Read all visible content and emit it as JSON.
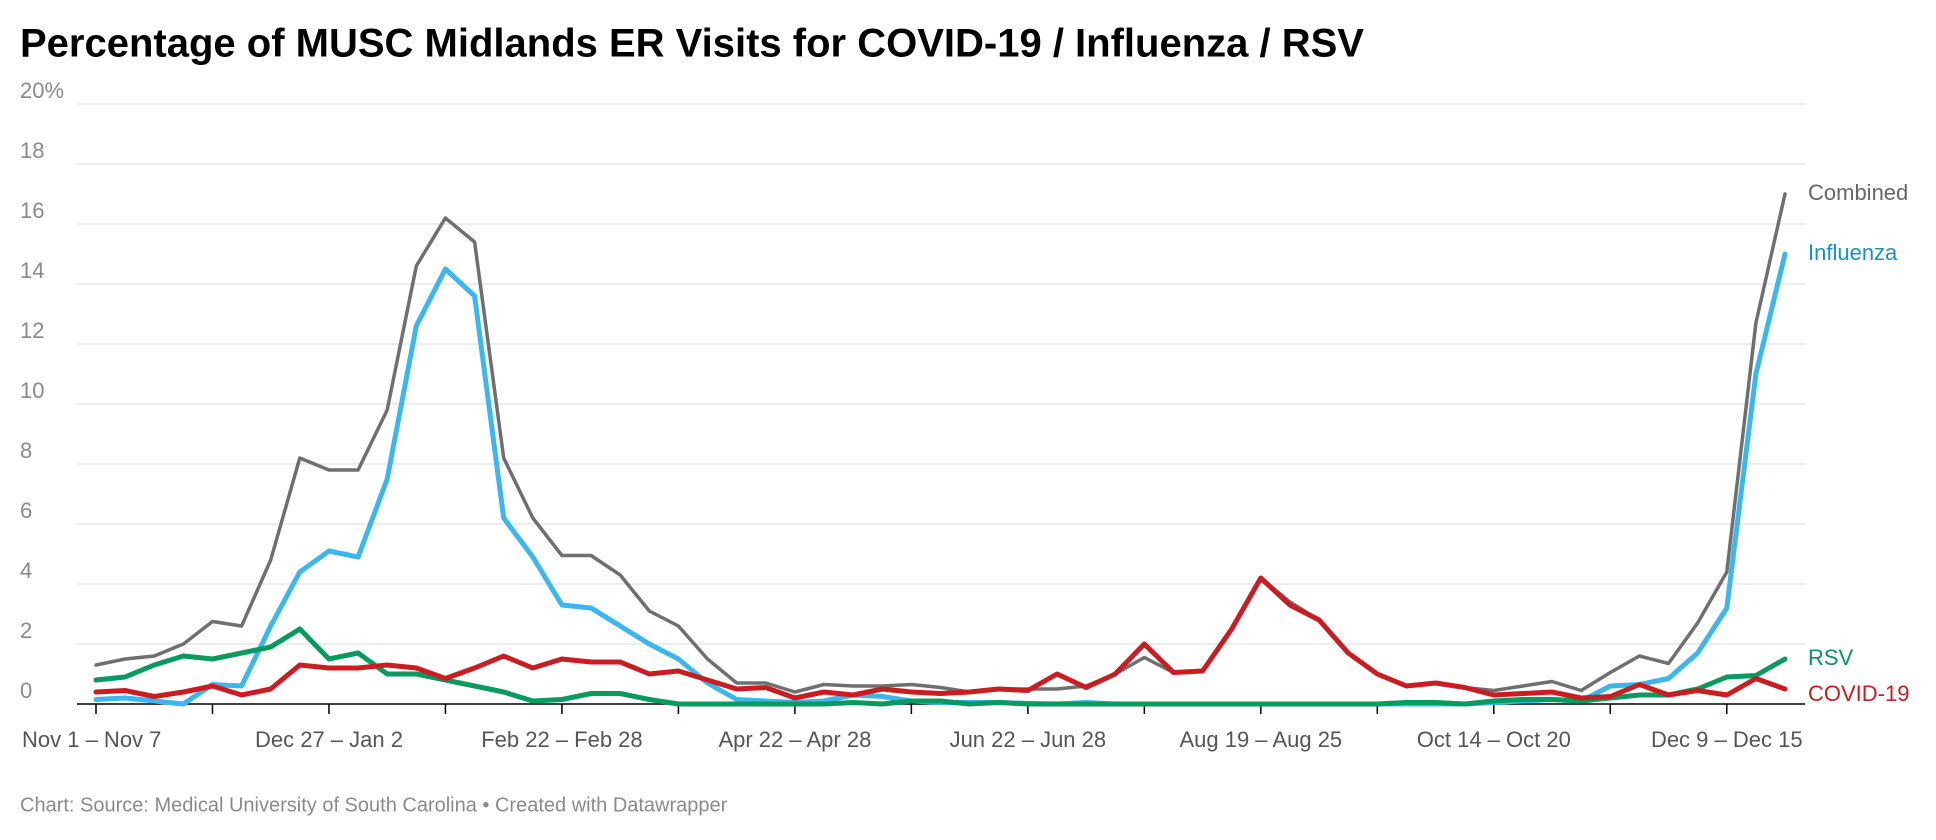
{
  "chart_data": {
    "type": "line",
    "title": "Percentage of MUSC Midlands ER Visits for COVID-19 / Influenza / RSV",
    "source": "Chart: Source: Medical University of South Carolina • Created with Datawrapper",
    "categories": [
      "Nov 1 – Nov 7",
      null,
      null,
      null,
      null,
      null,
      null,
      null,
      "Dec 27 – Jan 2",
      null,
      null,
      null,
      null,
      null,
      null,
      null,
      "Feb 22 – Feb 28",
      null,
      null,
      null,
      null,
      null,
      null,
      null,
      "Apr 22 – Apr 28",
      null,
      null,
      null,
      null,
      null,
      null,
      null,
      "Jun 22 – Jun 28",
      null,
      null,
      null,
      null,
      null,
      null,
      null,
      "Aug 19 – Aug 25",
      null,
      null,
      null,
      null,
      null,
      null,
      null,
      "Oct 14 – Oct 20",
      null,
      null,
      null,
      null,
      null,
      null,
      null,
      "Dec 9 – Dec 15",
      null,
      null
    ],
    "ylim": [
      0,
      20
    ],
    "yticks": [
      0,
      2,
      4,
      6,
      8,
      10,
      12,
      14,
      16,
      18,
      {
        "value": 20,
        "label": "20%"
      }
    ],
    "grid": true,
    "series": [
      {
        "name": "Combined",
        "color": "#6f6f6f",
        "label_color": "#666666",
        "values": [
          1.3,
          1.5,
          1.6,
          2.0,
          2.75,
          2.6,
          4.8,
          8.2,
          7.8,
          7.8,
          9.8,
          14.6,
          16.2,
          15.4,
          8.2,
          6.2,
          4.95,
          4.95,
          4.3,
          3.1,
          2.6,
          1.5,
          0.7,
          0.7,
          0.4,
          0.65,
          0.6,
          0.6,
          0.65,
          0.55,
          0.4,
          0.5,
          0.5,
          0.5,
          0.6,
          1.0,
          1.55,
          1.05,
          1.1,
          2.5,
          4.2,
          3.4,
          2.8,
          1.7,
          1.0,
          0.6,
          0.7,
          0.55,
          0.45,
          0.6,
          0.75,
          0.45,
          1.05,
          1.6,
          1.35,
          2.7,
          4.4,
          12.7,
          17.0
        ]
      },
      {
        "name": "Influenza",
        "color": "#3ab7ef",
        "label_color": "#1a8fc9",
        "values": [
          0.15,
          0.2,
          0.1,
          0.0,
          0.65,
          0.6,
          2.6,
          4.4,
          5.1,
          4.9,
          7.5,
          12.6,
          14.5,
          13.6,
          6.2,
          4.9,
          3.3,
          3.2,
          2.6,
          2.0,
          1.5,
          0.7,
          0.15,
          0.1,
          0.05,
          0.1,
          0.3,
          0.25,
          0.1,
          0.05,
          0.05,
          0.05,
          0.02,
          0.0,
          0.05,
          0.0,
          0.0,
          0.0,
          0.0,
          0.0,
          0.0,
          0.0,
          0.0,
          0.0,
          0.0,
          0.0,
          0.0,
          0.0,
          0.05,
          0.1,
          0.15,
          0.1,
          0.6,
          0.65,
          0.85,
          1.7,
          3.2,
          11.0,
          15.0
        ]
      },
      {
        "name": "RSV",
        "color": "#089a5f",
        "label_color": "#0a9460",
        "values": [
          0.8,
          0.9,
          1.3,
          1.6,
          1.5,
          1.7,
          1.9,
          2.5,
          1.5,
          1.7,
          1.0,
          1.0,
          0.8,
          0.6,
          0.4,
          0.1,
          0.15,
          0.35,
          0.35,
          0.15,
          0.0,
          0.0,
          0.0,
          0.0,
          0.0,
          0.0,
          0.05,
          0.0,
          0.1,
          0.1,
          0.0,
          0.05,
          0.0,
          0.0,
          0.0,
          0.0,
          0.0,
          0.0,
          0.0,
          0.0,
          0.0,
          0.0,
          0.0,
          0.0,
          0.0,
          0.05,
          0.05,
          0.0,
          0.1,
          0.15,
          0.15,
          0.1,
          0.2,
          0.3,
          0.3,
          0.5,
          0.9,
          0.95,
          1.5
        ]
      },
      {
        "name": "COVID-19",
        "color": "#c91d22",
        "label_color": "#c71e1d",
        "values": [
          0.4,
          0.45,
          0.25,
          0.4,
          0.6,
          0.3,
          0.5,
          1.3,
          1.2,
          1.2,
          1.3,
          1.2,
          0.85,
          1.2,
          1.6,
          1.2,
          1.5,
          1.4,
          1.4,
          1.0,
          1.1,
          0.8,
          0.5,
          0.55,
          0.2,
          0.4,
          0.3,
          0.5,
          0.4,
          0.35,
          0.4,
          0.5,
          0.45,
          1.0,
          0.55,
          1.0,
          2.0,
          1.05,
          1.1,
          2.5,
          4.2,
          3.3,
          2.8,
          1.7,
          1.0,
          0.6,
          0.7,
          0.55,
          0.3,
          0.35,
          0.4,
          0.2,
          0.25,
          0.65,
          0.3,
          0.45,
          0.3,
          0.85,
          0.5
        ]
      }
    ]
  }
}
